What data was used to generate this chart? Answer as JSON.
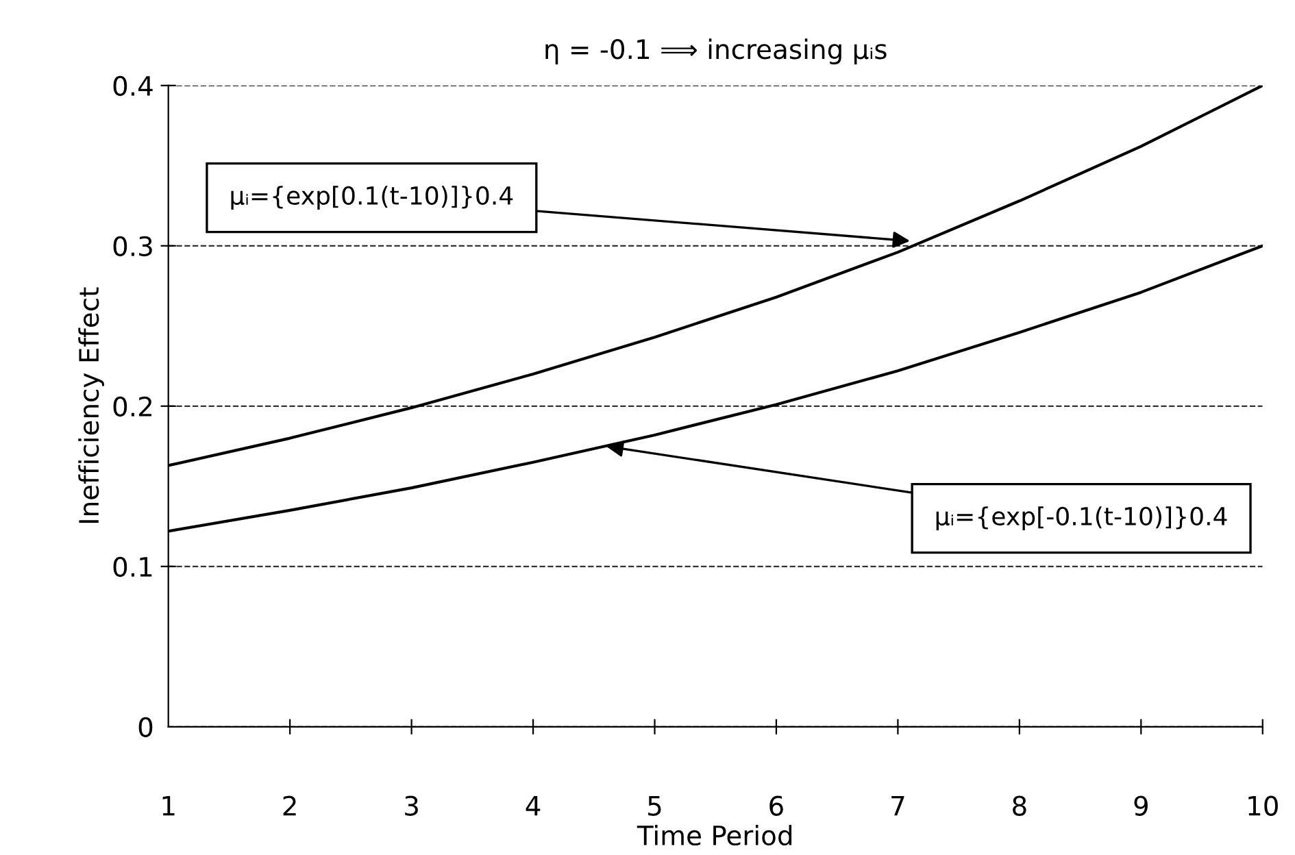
{
  "chart_data": {
    "type": "line",
    "title": "η = -0.1 ⟹ increasing μᵢs",
    "xlabel": "Time Period",
    "ylabel": "Inefficiency Effect",
    "x": [
      1,
      2,
      3,
      4,
      5,
      6,
      7,
      8,
      9,
      10
    ],
    "series": [
      {
        "color": "#000000",
        "values": [
          0.163,
          0.18,
          0.199,
          0.22,
          0.243,
          0.268,
          0.296,
          0.328,
          0.362,
          0.4
        ]
      },
      {
        "color": "#000000",
        "values": [
          0.122,
          0.135,
          0.149,
          0.165,
          0.182,
          0.201,
          0.222,
          0.246,
          0.271,
          0.3
        ]
      }
    ],
    "xlim": [
      1,
      10
    ],
    "xticks": [
      1,
      2,
      3,
      4,
      5,
      6,
      7,
      8,
      9,
      10
    ],
    "ylim": [
      0,
      0.4
    ],
    "yticks": [
      0,
      0.1,
      0.2,
      0.3,
      0.4
    ],
    "grid": "y",
    "marker": "none",
    "line_style": "solid",
    "legend": false,
    "annotations": [
      {
        "text": "μᵢ={exp[0.1(t-10)]}0.4",
        "x": 7.1,
        "y": 0.303
      },
      {
        "text": "μᵢ={exp[-0.1(t-10)]}0.4",
        "x": 4.6,
        "y": 0.175
      }
    ]
  }
}
